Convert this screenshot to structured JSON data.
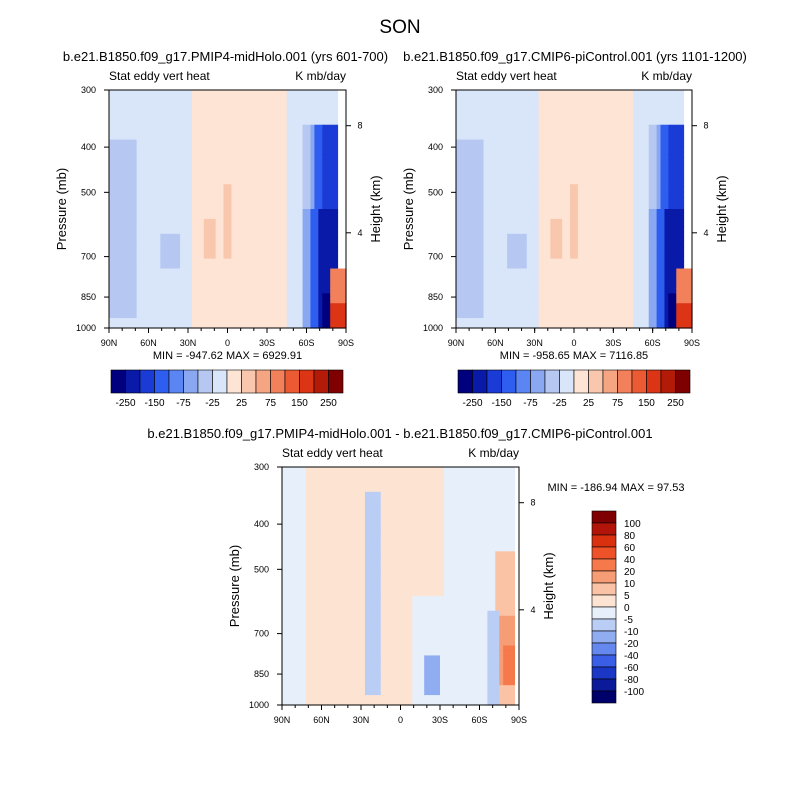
{
  "page_title": "SON",
  "chart_data": [
    {
      "type": "heatmap",
      "title": "b.e21.B1850.f09_g17.PMIP4-midHolo.001 (yrs 601-700)",
      "left_label": "Stat eddy vert heat",
      "right_label": "K mb/day",
      "xlabel": "",
      "ylabel": "Pressure (mb)",
      "ylabel_right": "Height (km)",
      "x_ticks": [
        "90N",
        "60N",
        "30N",
        "0",
        "30S",
        "60S",
        "90S"
      ],
      "y_ticks": [
        "300",
        "400",
        "500",
        "700",
        "850",
        "1000"
      ],
      "y_ticks_right": [
        "8",
        "4"
      ],
      "min_label": "MIN = -947.62",
      "max_label": "MAX = 6929.91",
      "colorbar_labels": [
        "-250",
        "-150",
        "-75",
        "-25",
        "25",
        "75",
        "150",
        "250"
      ]
    },
    {
      "type": "heatmap",
      "title": "b.e21.B1850.f09_g17.CMIP6-piControl.001 (yrs 1101-1200)",
      "left_label": "Stat eddy vert heat",
      "right_label": "K mb/day",
      "xlabel": "",
      "ylabel": "Pressure (mb)",
      "ylabel_right": "Height (km)",
      "x_ticks": [
        "90N",
        "60N",
        "30N",
        "0",
        "30S",
        "60S",
        "90S"
      ],
      "y_ticks": [
        "300",
        "400",
        "500",
        "700",
        "850",
        "1000"
      ],
      "y_ticks_right": [
        "8",
        "4"
      ],
      "min_label": "MIN = -958.65",
      "max_label": "MAX = 7116.85",
      "colorbar_labels": [
        "-250",
        "-150",
        "-75",
        "-25",
        "25",
        "75",
        "150",
        "250"
      ]
    },
    {
      "type": "heatmap",
      "title": "b.e21.B1850.f09_g17.PMIP4-midHolo.001 - b.e21.B1850.f09_g17.CMIP6-piControl.001",
      "left_label": "Stat eddy vert heat",
      "right_label": "K mb/day",
      "xlabel": "",
      "ylabel": "Pressure (mb)",
      "ylabel_right": "Height (km)",
      "x_ticks": [
        "90N",
        "60N",
        "30N",
        "0",
        "30S",
        "60S",
        "90S"
      ],
      "y_ticks": [
        "300",
        "400",
        "500",
        "700",
        "850",
        "1000"
      ],
      "y_ticks_right": [
        "8",
        "4"
      ],
      "min_label": "MIN = -186.94",
      "max_label": "MAX =  97.53",
      "colorbar_labels": [
        "100",
        "80",
        "60",
        "40",
        "20",
        "10",
        "5",
        "0",
        "-5",
        "-10",
        "-20",
        "-40",
        "-60",
        "-80",
        "-100"
      ]
    }
  ],
  "colors": {
    "abs_palette": [
      "#00007f",
      "#0a1aa8",
      "#1a3bd6",
      "#2e5ef0",
      "#5a85f2",
      "#8aa8f2",
      "#b6c8f2",
      "#d9e6fa",
      "#fde4d4",
      "#f9c7ad",
      "#f6a583",
      "#f2805a",
      "#ec5a33",
      "#dc3515",
      "#b41a08",
      "#7f0000"
    ],
    "diff_palette": [
      "#7f0000",
      "#b31409",
      "#d9300f",
      "#ee5228",
      "#f5794a",
      "#f79d76",
      "#fbc3a6",
      "#fde4d2",
      "#e6effa",
      "#b9cdf5",
      "#90adf2",
      "#6488ee",
      "#3a5ee6",
      "#1b37c5",
      "#0a1a98",
      "#00006a"
    ]
  }
}
